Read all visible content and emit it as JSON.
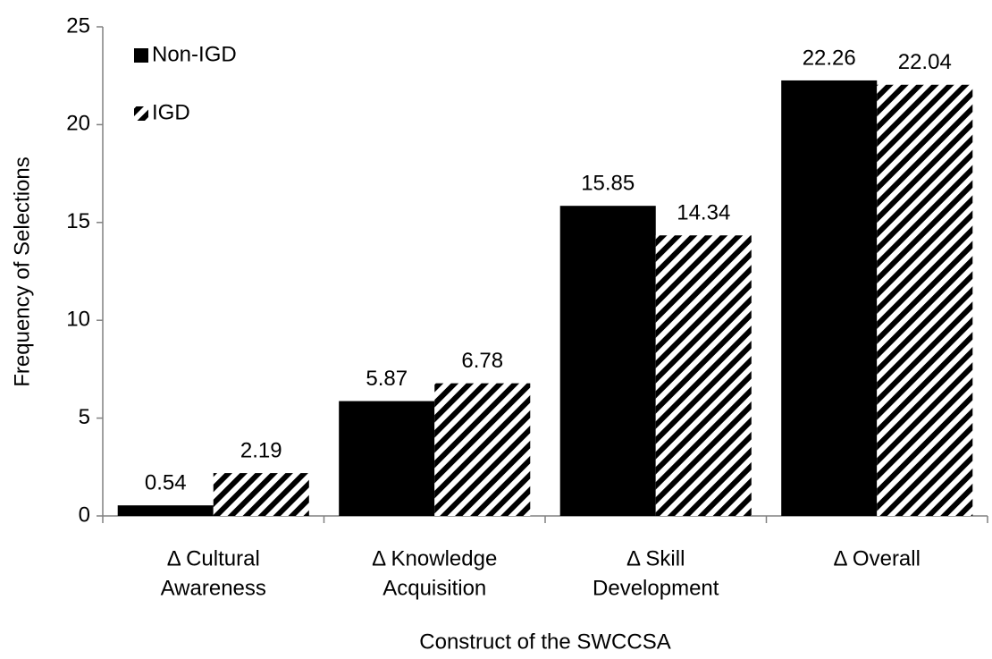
{
  "chart_data": {
    "type": "bar",
    "x_label": "Construct of the SWCCSA",
    "y_label": "Frequency of Selections",
    "categories": [
      [
        "Δ Cultural",
        "Awareness"
      ],
      [
        "Δ Knowledge",
        "Acquisition"
      ],
      [
        "Δ Skill",
        "Development"
      ],
      [
        "Δ Overall"
      ]
    ],
    "series": [
      {
        "name": "Non-IGD",
        "color": "#000000",
        "pattern": "solid",
        "values": [
          0.54,
          5.87,
          15.85,
          22.26
        ]
      },
      {
        "name": "IGD",
        "color": "#000000",
        "pattern": "diagonal-stripes",
        "values": [
          2.19,
          6.78,
          14.34,
          22.04
        ]
      }
    ],
    "ylim": [
      0,
      25
    ],
    "yticks": [
      0,
      5,
      10,
      15,
      20,
      25
    ],
    "grid": false,
    "legend": "top-left",
    "data_labels": true
  }
}
